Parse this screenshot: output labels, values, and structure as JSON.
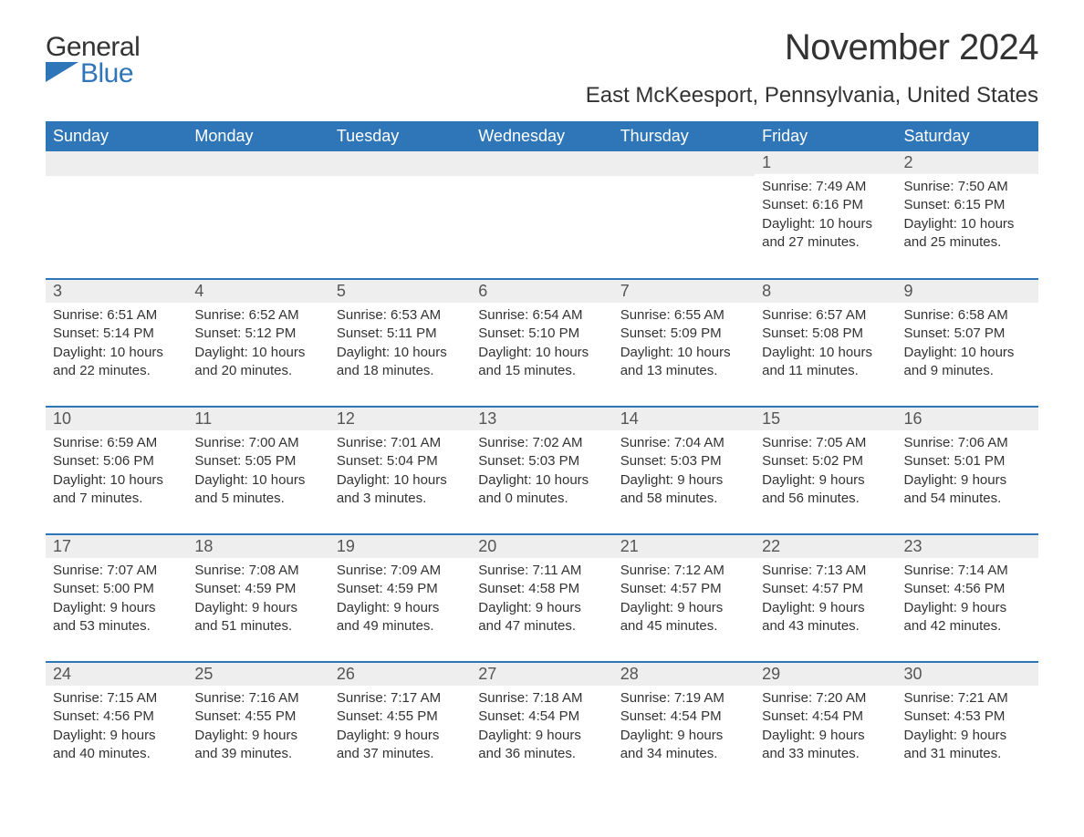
{
  "brand": {
    "general": "General",
    "blue": "Blue"
  },
  "title": "November 2024",
  "location": "East McKeesport, Pennsylvania, United States",
  "colors": {
    "accent": "#2f76b8",
    "header_row_bg": "#2f76b8",
    "header_text": "#ffffff",
    "daynum_bg": "#eeeeee",
    "text": "#333333",
    "border": "#2f76b8"
  },
  "day_headers": [
    "Sunday",
    "Monday",
    "Tuesday",
    "Wednesday",
    "Thursday",
    "Friday",
    "Saturday"
  ],
  "weeks": [
    [
      null,
      null,
      null,
      null,
      null,
      {
        "n": "1",
        "sunrise": "Sunrise: 7:49 AM",
        "sunset": "Sunset: 6:16 PM",
        "daylight1": "Daylight: 10 hours",
        "daylight2": "and 27 minutes."
      },
      {
        "n": "2",
        "sunrise": "Sunrise: 7:50 AM",
        "sunset": "Sunset: 6:15 PM",
        "daylight1": "Daylight: 10 hours",
        "daylight2": "and 25 minutes."
      }
    ],
    [
      {
        "n": "3",
        "sunrise": "Sunrise: 6:51 AM",
        "sunset": "Sunset: 5:14 PM",
        "daylight1": "Daylight: 10 hours",
        "daylight2": "and 22 minutes."
      },
      {
        "n": "4",
        "sunrise": "Sunrise: 6:52 AM",
        "sunset": "Sunset: 5:12 PM",
        "daylight1": "Daylight: 10 hours",
        "daylight2": "and 20 minutes."
      },
      {
        "n": "5",
        "sunrise": "Sunrise: 6:53 AM",
        "sunset": "Sunset: 5:11 PM",
        "daylight1": "Daylight: 10 hours",
        "daylight2": "and 18 minutes."
      },
      {
        "n": "6",
        "sunrise": "Sunrise: 6:54 AM",
        "sunset": "Sunset: 5:10 PM",
        "daylight1": "Daylight: 10 hours",
        "daylight2": "and 15 minutes."
      },
      {
        "n": "7",
        "sunrise": "Sunrise: 6:55 AM",
        "sunset": "Sunset: 5:09 PM",
        "daylight1": "Daylight: 10 hours",
        "daylight2": "and 13 minutes."
      },
      {
        "n": "8",
        "sunrise": "Sunrise: 6:57 AM",
        "sunset": "Sunset: 5:08 PM",
        "daylight1": "Daylight: 10 hours",
        "daylight2": "and 11 minutes."
      },
      {
        "n": "9",
        "sunrise": "Sunrise: 6:58 AM",
        "sunset": "Sunset: 5:07 PM",
        "daylight1": "Daylight: 10 hours",
        "daylight2": "and 9 minutes."
      }
    ],
    [
      {
        "n": "10",
        "sunrise": "Sunrise: 6:59 AM",
        "sunset": "Sunset: 5:06 PM",
        "daylight1": "Daylight: 10 hours",
        "daylight2": "and 7 minutes."
      },
      {
        "n": "11",
        "sunrise": "Sunrise: 7:00 AM",
        "sunset": "Sunset: 5:05 PM",
        "daylight1": "Daylight: 10 hours",
        "daylight2": "and 5 minutes."
      },
      {
        "n": "12",
        "sunrise": "Sunrise: 7:01 AM",
        "sunset": "Sunset: 5:04 PM",
        "daylight1": "Daylight: 10 hours",
        "daylight2": "and 3 minutes."
      },
      {
        "n": "13",
        "sunrise": "Sunrise: 7:02 AM",
        "sunset": "Sunset: 5:03 PM",
        "daylight1": "Daylight: 10 hours",
        "daylight2": "and 0 minutes."
      },
      {
        "n": "14",
        "sunrise": "Sunrise: 7:04 AM",
        "sunset": "Sunset: 5:03 PM",
        "daylight1": "Daylight: 9 hours",
        "daylight2": "and 58 minutes."
      },
      {
        "n": "15",
        "sunrise": "Sunrise: 7:05 AM",
        "sunset": "Sunset: 5:02 PM",
        "daylight1": "Daylight: 9 hours",
        "daylight2": "and 56 minutes."
      },
      {
        "n": "16",
        "sunrise": "Sunrise: 7:06 AM",
        "sunset": "Sunset: 5:01 PM",
        "daylight1": "Daylight: 9 hours",
        "daylight2": "and 54 minutes."
      }
    ],
    [
      {
        "n": "17",
        "sunrise": "Sunrise: 7:07 AM",
        "sunset": "Sunset: 5:00 PM",
        "daylight1": "Daylight: 9 hours",
        "daylight2": "and 53 minutes."
      },
      {
        "n": "18",
        "sunrise": "Sunrise: 7:08 AM",
        "sunset": "Sunset: 4:59 PM",
        "daylight1": "Daylight: 9 hours",
        "daylight2": "and 51 minutes."
      },
      {
        "n": "19",
        "sunrise": "Sunrise: 7:09 AM",
        "sunset": "Sunset: 4:59 PM",
        "daylight1": "Daylight: 9 hours",
        "daylight2": "and 49 minutes."
      },
      {
        "n": "20",
        "sunrise": "Sunrise: 7:11 AM",
        "sunset": "Sunset: 4:58 PM",
        "daylight1": "Daylight: 9 hours",
        "daylight2": "and 47 minutes."
      },
      {
        "n": "21",
        "sunrise": "Sunrise: 7:12 AM",
        "sunset": "Sunset: 4:57 PM",
        "daylight1": "Daylight: 9 hours",
        "daylight2": "and 45 minutes."
      },
      {
        "n": "22",
        "sunrise": "Sunrise: 7:13 AM",
        "sunset": "Sunset: 4:57 PM",
        "daylight1": "Daylight: 9 hours",
        "daylight2": "and 43 minutes."
      },
      {
        "n": "23",
        "sunrise": "Sunrise: 7:14 AM",
        "sunset": "Sunset: 4:56 PM",
        "daylight1": "Daylight: 9 hours",
        "daylight2": "and 42 minutes."
      }
    ],
    [
      {
        "n": "24",
        "sunrise": "Sunrise: 7:15 AM",
        "sunset": "Sunset: 4:56 PM",
        "daylight1": "Daylight: 9 hours",
        "daylight2": "and 40 minutes."
      },
      {
        "n": "25",
        "sunrise": "Sunrise: 7:16 AM",
        "sunset": "Sunset: 4:55 PM",
        "daylight1": "Daylight: 9 hours",
        "daylight2": "and 39 minutes."
      },
      {
        "n": "26",
        "sunrise": "Sunrise: 7:17 AM",
        "sunset": "Sunset: 4:55 PM",
        "daylight1": "Daylight: 9 hours",
        "daylight2": "and 37 minutes."
      },
      {
        "n": "27",
        "sunrise": "Sunrise: 7:18 AM",
        "sunset": "Sunset: 4:54 PM",
        "daylight1": "Daylight: 9 hours",
        "daylight2": "and 36 minutes."
      },
      {
        "n": "28",
        "sunrise": "Sunrise: 7:19 AM",
        "sunset": "Sunset: 4:54 PM",
        "daylight1": "Daylight: 9 hours",
        "daylight2": "and 34 minutes."
      },
      {
        "n": "29",
        "sunrise": "Sunrise: 7:20 AM",
        "sunset": "Sunset: 4:54 PM",
        "daylight1": "Daylight: 9 hours",
        "daylight2": "and 33 minutes."
      },
      {
        "n": "30",
        "sunrise": "Sunrise: 7:21 AM",
        "sunset": "Sunset: 4:53 PM",
        "daylight1": "Daylight: 9 hours",
        "daylight2": "and 31 minutes."
      }
    ]
  ]
}
